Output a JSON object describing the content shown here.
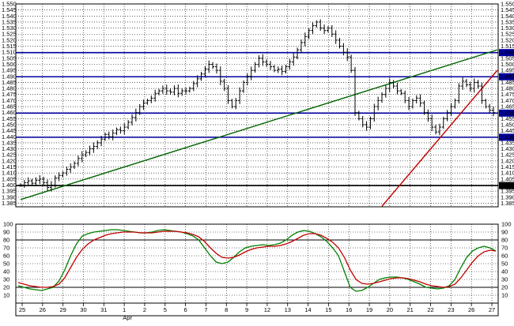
{
  "chart_data": [
    {
      "type": "ohlc",
      "title": "",
      "xlabel": "",
      "ylabel": "",
      "ylim": [
        1.382,
        1.55
      ],
      "y_ticks": [
        1.385,
        1.39,
        1.395,
        1.4,
        1.405,
        1.41,
        1.415,
        1.42,
        1.425,
        1.43,
        1.435,
        1.44,
        1.445,
        1.45,
        1.455,
        1.46,
        1.465,
        1.47,
        1.475,
        1.48,
        1.485,
        1.49,
        1.495,
        1.5,
        1.505,
        1.51,
        1.515,
        1.52,
        1.525,
        1.53,
        1.535,
        1.54,
        1.545,
        1.55
      ],
      "y_tick_labels": [
        "1.385",
        "1.390",
        "1.395",
        "1.400",
        "1.405",
        "1.410",
        "1.415",
        "1.420",
        "1.425",
        "1.430",
        "1.435",
        "1.440",
        "1.445",
        "1.450",
        "1.455",
        "1.460",
        "1.465",
        "1.470",
        "1.475",
        "1.480",
        "1.485",
        "1.490",
        "1.495",
        "1.500",
        "1.505",
        "1.510",
        "1.515",
        "1.520",
        "1.525",
        "1.530",
        "1.535",
        "1.540",
        "1.545",
        "1.550"
      ],
      "x_tick_labels": [
        "25",
        "26",
        "29",
        "30",
        "31",
        "1",
        "2",
        "5",
        "6",
        "7",
        "8",
        "9",
        "12",
        "13",
        "14",
        "15",
        "16",
        "19",
        "20",
        "21",
        "22",
        "23",
        "26",
        "27"
      ],
      "x_month_label": "Apr",
      "grid": true,
      "series": [
        {
          "values": [
            1.4,
            1.402,
            1.4035,
            1.4015,
            1.404,
            1.405,
            1.402,
            1.398,
            1.4,
            1.406,
            1.408,
            1.41,
            1.413,
            1.415,
            1.418,
            1.422,
            1.425,
            1.427,
            1.43,
            1.432,
            1.435,
            1.438,
            1.442,
            1.44,
            1.443,
            1.446,
            1.445,
            1.448,
            1.452,
            1.456,
            1.46,
            1.465,
            1.468,
            1.47,
            1.472,
            1.476,
            1.478,
            1.48,
            1.478,
            1.477,
            1.48,
            1.476,
            1.478,
            1.478,
            1.48,
            1.484,
            1.488,
            1.492,
            1.496,
            1.5,
            1.498,
            1.495,
            1.486,
            1.48,
            1.47,
            1.465,
            1.47,
            1.478,
            1.485,
            1.49,
            1.495,
            1.5,
            1.505,
            1.502,
            1.5,
            1.498,
            1.495,
            1.496,
            1.494,
            1.498,
            1.502,
            1.506,
            1.512,
            1.518,
            1.523,
            1.528,
            1.532,
            1.535,
            1.53,
            1.528,
            1.53,
            1.525,
            1.52,
            1.515,
            1.51,
            1.506,
            1.495,
            1.46,
            1.455,
            1.45,
            1.448,
            1.455,
            1.465,
            1.47,
            1.475,
            1.48,
            1.485,
            1.482,
            1.478,
            1.476,
            1.47,
            1.465,
            1.47,
            1.472,
            1.468,
            1.46,
            1.455,
            1.448,
            1.444,
            1.448,
            1.455,
            1.46,
            1.465,
            1.47,
            1.482,
            1.486,
            1.483,
            1.48,
            1.485,
            1.482,
            1.47,
            1.465,
            1.462,
            1.46
          ]
        }
      ],
      "horizontal_levels": [
        {
          "value": 1.5097,
          "label": "1.5097",
          "color": "#0000a0"
        },
        {
          "value": 1.4897,
          "label": "1.4897",
          "color": "#0000a0"
        },
        {
          "value": 1.4596,
          "label": "1.4596",
          "color": "#0000a0"
        },
        {
          "value": 1.4396,
          "label": "1.4396",
          "color": "#0000a0"
        },
        {
          "value": 1.3996,
          "label": "1.3996",
          "color": "#000000"
        }
      ],
      "trendlines": [
        {
          "color": "#006400",
          "from": [
            0,
            1.388
          ],
          "to": [
            124,
            1.512
          ]
        },
        {
          "color": "#c00000",
          "from": [
            94,
            1.3825
          ],
          "to": [
            124,
            1.495
          ]
        }
      ],
      "bar_color": "#000000"
    },
    {
      "type": "line",
      "title": "",
      "ylim": [
        0,
        100
      ],
      "y_ticks": [
        10,
        20,
        30,
        40,
        50,
        60,
        70,
        80,
        90,
        100
      ],
      "y_tick_labels": [
        "10",
        "20",
        "30",
        "40",
        "50",
        "60",
        "70",
        "80",
        "90",
        "100"
      ],
      "reference_lines": [
        20,
        80
      ],
      "series": [
        {
          "color": "#008000",
          "values": [
            22,
            20,
            18,
            17,
            16,
            18,
            20,
            28,
            42,
            60,
            75,
            85,
            88,
            90,
            91,
            92,
            93,
            93,
            92,
            91,
            90,
            89,
            89,
            90,
            92,
            93,
            92,
            91,
            90,
            88,
            85,
            80,
            70,
            60,
            52,
            50,
            52,
            58,
            65,
            70,
            72,
            73,
            74,
            73,
            74,
            76,
            80,
            86,
            90,
            92,
            91,
            88,
            84,
            78,
            70,
            60,
            40,
            20,
            15,
            16,
            20,
            25,
            30,
            32,
            33,
            33,
            32,
            30,
            27,
            24,
            20,
            19,
            18,
            19,
            22,
            30,
            45,
            58,
            66,
            70,
            72,
            70,
            66
          ]
        },
        {
          "color": "#c00000",
          "values": [
            26,
            24,
            22,
            21,
            20,
            20,
            21,
            24,
            32,
            45,
            58,
            68,
            75,
            80,
            83,
            86,
            88,
            89,
            90,
            90,
            90,
            89,
            89,
            89,
            90,
            91,
            91,
            91,
            90,
            89,
            87,
            84,
            78,
            70,
            63,
            58,
            57,
            58,
            61,
            65,
            68,
            70,
            71,
            72,
            72,
            73,
            75,
            78,
            82,
            86,
            88,
            88,
            86,
            82,
            77,
            70,
            58,
            42,
            30,
            25,
            24,
            25,
            27,
            29,
            31,
            32,
            32,
            31,
            29,
            27,
            24,
            22,
            21,
            20,
            21,
            24,
            32,
            42,
            52,
            60,
            65,
            67,
            66
          ]
        }
      ]
    }
  ]
}
